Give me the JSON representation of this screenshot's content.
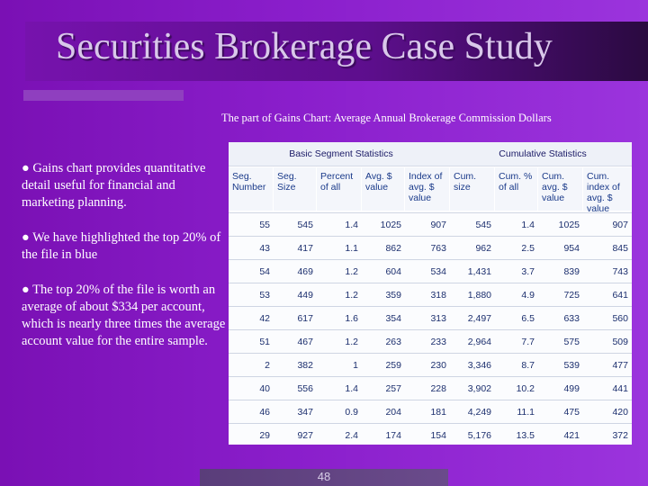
{
  "slide": {
    "title": "Securities Brokerage Case Study",
    "chart_caption": "The part of Gains Chart: Average Annual Brokerage Commission Dollars",
    "page_number": "48"
  },
  "bullets": [
    "● Gains chart provides quantitative detail useful for financial and marketing planning.",
    "● We have highlighted the top 20% of the file in blue",
    "● The top 20% of the file is worth an average of about $334 per account, which is nearly three times the average account value for the entire sample."
  ],
  "table": {
    "group_headers": [
      "Basic Segment Statistics",
      "Cumulative Statistics"
    ],
    "columns": [
      "Seg. Number",
      "Seg. Size",
      "Percent of all",
      "Avg. $ value",
      "Index of avg. $ value",
      "Cum. size",
      "Cum. % of all",
      "Cum. avg. $ value",
      "Cum. index of avg. $ value"
    ],
    "rows": [
      [
        "55",
        "545",
        "1.4",
        "1025",
        "907",
        "545",
        "1.4",
        "1025",
        "907"
      ],
      [
        "43",
        "417",
        "1.1",
        "862",
        "763",
        "962",
        "2.5",
        "954",
        "845"
      ],
      [
        "54",
        "469",
        "1.2",
        "604",
        "534",
        "1,431",
        "3.7",
        "839",
        "743"
      ],
      [
        "53",
        "449",
        "1.2",
        "359",
        "318",
        "1,880",
        "4.9",
        "725",
        "641"
      ],
      [
        "42",
        "617",
        "1.6",
        "354",
        "313",
        "2,497",
        "6.5",
        "633",
        "560"
      ],
      [
        "51",
        "467",
        "1.2",
        "263",
        "233",
        "2,964",
        "7.7",
        "575",
        "509"
      ],
      [
        "2",
        "382",
        "1",
        "259",
        "230",
        "3,346",
        "8.7",
        "539",
        "477"
      ],
      [
        "40",
        "556",
        "1.4",
        "257",
        "228",
        "3,902",
        "10.2",
        "499",
        "441"
      ],
      [
        "46",
        "347",
        "0.9",
        "204",
        "181",
        "4,249",
        "11.1",
        "475",
        "420"
      ],
      [
        "29",
        "927",
        "2.4",
        "174",
        "154",
        "5,176",
        "13.5",
        "421",
        "372"
      ]
    ]
  }
}
